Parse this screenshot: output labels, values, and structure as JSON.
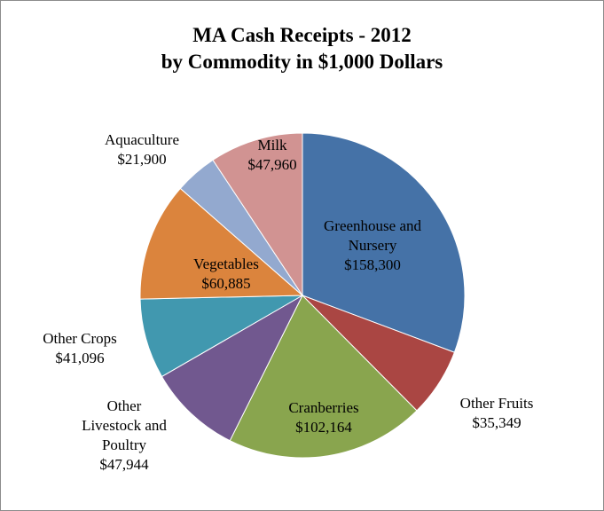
{
  "chart_data": {
    "type": "pie",
    "title": "MA Cash Receipts - 2012",
    "subtitle": "by Commodity in $1,000 Dollars",
    "categories": [
      "Greenhouse and Nursery",
      "Other Fruits",
      "Cranberries",
      "Other Livestock and Poultry",
      "Other Crops",
      "Vegetables",
      "Aquaculture",
      "Milk"
    ],
    "values": [
      158300,
      35349,
      102164,
      47944,
      41096,
      60885,
      21900,
      47960
    ],
    "value_labels": [
      "$158,300",
      "$35,349",
      "$102,164",
      "$47,944",
      "$41,096",
      "$60,885",
      "$21,900",
      "$47,960"
    ],
    "colors": [
      "#4572a7",
      "#aa4643",
      "#89a54e",
      "#71588f",
      "#4198af",
      "#db843d",
      "#93a9cf",
      "#d19392"
    ]
  }
}
